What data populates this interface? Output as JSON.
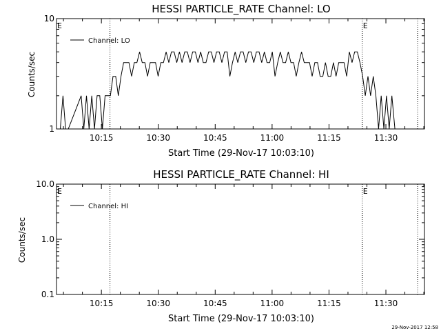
{
  "footer": {
    "timestamp": "29-Nov-2017 12:58"
  },
  "chart_data": [
    {
      "type": "line",
      "title": "HESSI PARTICLE_RATE Channel: LO",
      "xlabel": "Start Time (29-Nov-17 10:03:10)",
      "ylabel": "Counts/sec",
      "x_unit": "minutes after 10:03:10",
      "xlim": [
        0,
        97
      ],
      "ylim": [
        1,
        10
      ],
      "yscale": "log",
      "y_ticks": [
        "1",
        "10"
      ],
      "x_ticks": [
        "10:15",
        "10:30",
        "10:45",
        "11:00",
        "11:15",
        "11:30"
      ],
      "vlines": [
        {
          "x": 14.1,
          "label": ""
        },
        {
          "x": 80.6,
          "label": "E"
        },
        {
          "x": 95.2,
          "label": ""
        }
      ],
      "edge_markers": [
        {
          "x": 0,
          "label": "E"
        }
      ],
      "legend": "top-left",
      "series": [
        {
          "name": "Channel: LO",
          "x": [
            1.0,
            1.7,
            2.4,
            3.1,
            6.5,
            7.2,
            7.9,
            8.6,
            9.3,
            10.0,
            10.7,
            11.4,
            12.1,
            12.8,
            13.5,
            14.2,
            14.9,
            15.6,
            16.3,
            17.0,
            17.7,
            18.4,
            19.1,
            19.8,
            20.5,
            21.2,
            21.9,
            22.6,
            23.3,
            24.0,
            24.7,
            25.4,
            26.1,
            26.8,
            27.5,
            28.2,
            28.9,
            29.6,
            30.3,
            31.0,
            31.7,
            32.4,
            33.1,
            33.8,
            34.5,
            35.2,
            35.9,
            36.6,
            37.3,
            38.0,
            38.7,
            39.4,
            40.1,
            40.8,
            41.5,
            42.2,
            42.9,
            43.6,
            44.3,
            45.0,
            45.7,
            46.4,
            47.1,
            47.8,
            48.5,
            49.2,
            49.9,
            50.6,
            51.3,
            52.0,
            52.7,
            53.4,
            54.1,
            54.8,
            55.5,
            56.2,
            56.9,
            57.6,
            58.3,
            59.0,
            59.7,
            60.4,
            61.1,
            61.8,
            62.5,
            63.2,
            63.9,
            64.6,
            65.3,
            66.0,
            66.7,
            67.4,
            68.1,
            68.8,
            69.5,
            70.2,
            70.9,
            71.6,
            72.3,
            73.0,
            73.7,
            74.4,
            75.1,
            75.8,
            76.5,
            77.2,
            77.9,
            78.6,
            79.3,
            80.0,
            80.7,
            81.4,
            82.1,
            82.8,
            83.5,
            84.2,
            84.9,
            85.6,
            86.3,
            87.0,
            87.7,
            88.4,
            89.2
          ],
          "values": [
            1,
            2,
            1,
            1,
            2,
            1,
            2,
            1,
            2,
            1,
            2,
            2,
            1,
            2,
            2,
            2,
            3,
            3,
            2,
            3,
            4,
            4,
            4,
            3,
            4,
            4,
            5,
            4,
            4,
            3,
            4,
            4,
            4,
            3,
            4,
            4,
            5,
            4,
            5,
            5,
            4,
            5,
            4,
            5,
            5,
            4,
            5,
            5,
            4,
            5,
            4,
            4,
            5,
            5,
            4,
            5,
            5,
            4,
            5,
            5,
            3,
            4,
            5,
            4,
            5,
            5,
            4,
            5,
            5,
            4,
            5,
            5,
            4,
            5,
            4,
            4,
            5,
            3,
            4,
            5,
            4,
            4,
            5,
            4,
            4,
            3,
            4,
            5,
            4,
            4,
            4,
            3,
            4,
            4,
            3,
            3,
            4,
            3,
            3,
            4,
            3,
            4,
            4,
            4,
            3,
            5,
            4,
            5,
            5,
            4,
            3,
            2,
            3,
            2,
            3,
            2,
            1,
            2,
            1,
            2,
            1,
            2,
            1
          ]
        }
      ]
    },
    {
      "type": "line",
      "title": "HESSI PARTICLE_RATE Channel: HI",
      "xlabel": "Start Time (29-Nov-17 10:03:10)",
      "ylabel": "Counts/sec",
      "x_unit": "minutes after 10:03:10",
      "xlim": [
        0,
        97
      ],
      "ylim": [
        0.1,
        10
      ],
      "yscale": "log",
      "y_ticks": [
        "0.1",
        "1.0",
        "10.0"
      ],
      "x_ticks": [
        "10:15",
        "10:30",
        "10:45",
        "11:00",
        "11:15",
        "11:30"
      ],
      "vlines": [
        {
          "x": 14.1,
          "label": ""
        },
        {
          "x": 80.6,
          "label": "E"
        },
        {
          "x": 95.2,
          "label": ""
        }
      ],
      "edge_markers": [
        {
          "x": 0,
          "label": "E"
        }
      ],
      "legend": "top-left",
      "series": [
        {
          "name": "Channel: HI",
          "x": [],
          "values": []
        }
      ]
    }
  ]
}
